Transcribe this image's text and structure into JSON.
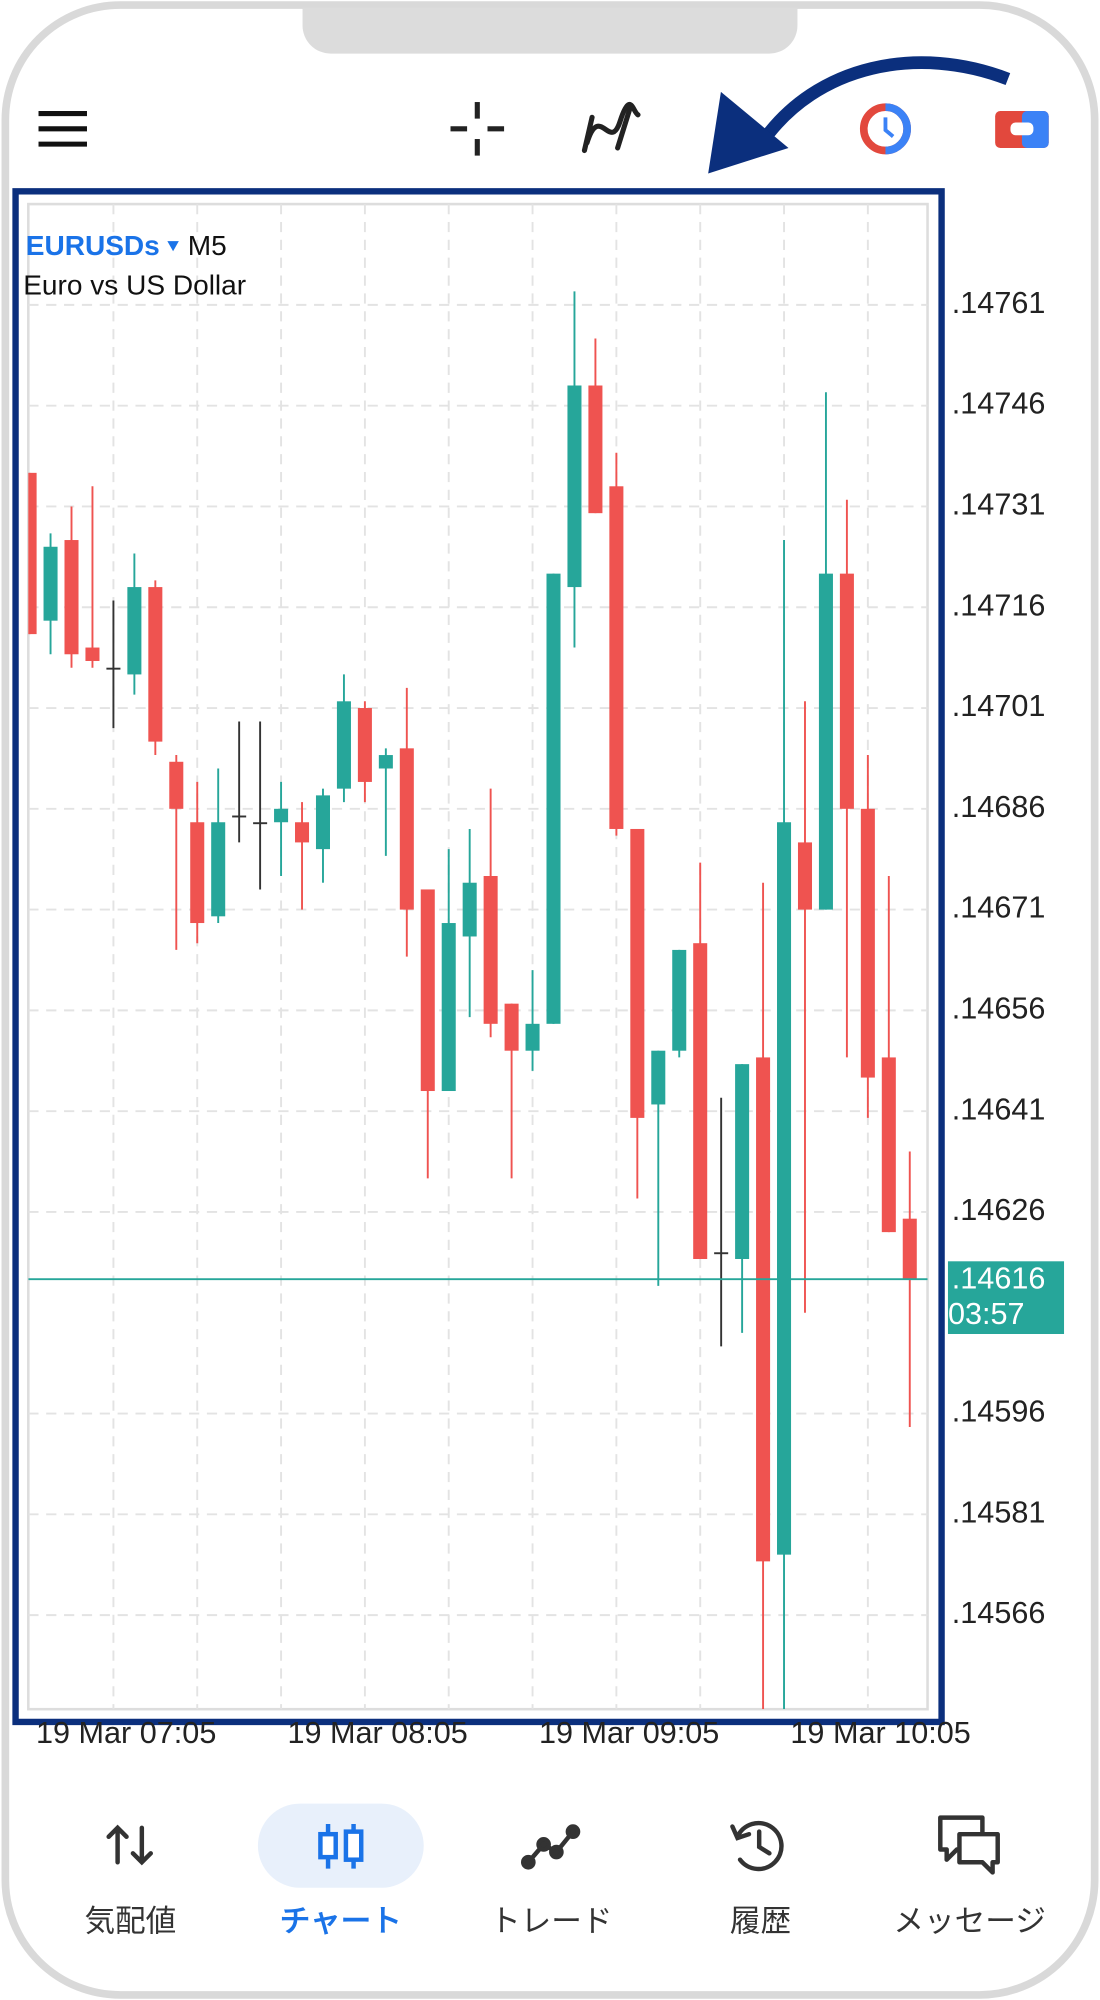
{
  "chart_data": {
    "type": "candlestick",
    "symbol": "EURUSDs",
    "timeframe": "M5",
    "description": "Euro vs US Dollar",
    "categories": [
      null,
      null,
      null,
      null,
      "19 Mar 07:05",
      null,
      null,
      null,
      null,
      null,
      null,
      null,
      null,
      null,
      null,
      null,
      "19 Mar 08:05",
      null,
      null,
      null,
      null,
      null,
      null,
      null,
      null,
      null,
      null,
      null,
      "19 Mar 09:05",
      null,
      null,
      null,
      null,
      null,
      null,
      null,
      null,
      null,
      null,
      null,
      "19 Mar 10:05",
      null,
      null
    ],
    "open": [
      1.14736,
      1.14714,
      1.14726,
      1.1471,
      1.14707,
      1.14706,
      1.14719,
      1.14693,
      1.14684,
      1.1467,
      1.14685,
      1.14684,
      1.14684,
      1.14684,
      1.1468,
      1.14689,
      1.14701,
      1.14692,
      1.14695,
      1.14674,
      1.14644,
      1.14667,
      1.14676,
      1.14657,
      1.1465,
      1.14654,
      1.14719,
      1.14749,
      1.14734,
      1.14683,
      1.14642,
      1.1465,
      1.14666,
      1.1462,
      1.14619,
      1.14649,
      1.14575,
      1.14681,
      1.14671,
      1.14721,
      1.14686,
      1.14649,
      1.14625
    ],
    "high": [
      1.14736,
      1.14727,
      1.14731,
      1.14734,
      1.14717,
      1.14724,
      1.1472,
      1.14694,
      1.1469,
      1.14692,
      1.14699,
      1.14699,
      1.1469,
      1.14687,
      1.14689,
      1.14706,
      1.14702,
      1.14695,
      1.14704,
      1.14674,
      1.1468,
      1.14683,
      1.14689,
      1.14657,
      1.14662,
      1.14721,
      1.14763,
      1.14756,
      1.14739,
      1.14683,
      1.1465,
      1.14665,
      1.14678,
      1.14643,
      1.14648,
      1.14675,
      1.14726,
      1.14702,
      1.14748,
      1.14732,
      1.14694,
      1.14676,
      1.14635
    ],
    "low": [
      1.14712,
      1.14709,
      1.14707,
      1.14707,
      1.14698,
      1.14703,
      1.14694,
      1.14665,
      1.14666,
      1.14669,
      1.14681,
      1.14674,
      1.14676,
      1.14671,
      1.14675,
      1.14687,
      1.14687,
      1.14679,
      1.14664,
      1.14631,
      1.14644,
      1.14655,
      1.14652,
      1.14631,
      1.14647,
      1.14654,
      1.1471,
      1.1473,
      1.14682,
      1.14628,
      1.14615,
      1.14649,
      1.14619,
      1.14606,
      1.14608,
      1.14552,
      1.14552,
      1.14611,
      1.14671,
      1.14649,
      1.1464,
      1.14623,
      1.14594
    ],
    "close": [
      1.14712,
      1.14725,
      1.14709,
      1.14708,
      1.14707,
      1.14719,
      1.14696,
      1.14686,
      1.14669,
      1.14684,
      1.14685,
      1.14684,
      1.14686,
      1.14681,
      1.14688,
      1.14702,
      1.1469,
      1.14694,
      1.14671,
      1.14644,
      1.14669,
      1.14675,
      1.14654,
      1.1465,
      1.14654,
      1.14721,
      1.14749,
      1.1473,
      1.14683,
      1.1464,
      1.1465,
      1.14665,
      1.14619,
      1.1462,
      1.14648,
      1.14574,
      1.14684,
      1.14671,
      1.14721,
      1.14686,
      1.14646,
      1.14623,
      1.14616
    ],
    "up_color": "#26a69a",
    "down_color": "#ef5350",
    "ylim": [
      1.14552,
      1.14776
    ],
    "yticks": [
      {
        "value": 1.14761,
        "label": ".14761"
      },
      {
        "value": 1.14746,
        "label": ".14746"
      },
      {
        "value": 1.14731,
        "label": ".14731"
      },
      {
        "value": 1.14716,
        "label": ".14716"
      },
      {
        "value": 1.14701,
        "label": ".14701"
      },
      {
        "value": 1.14686,
        "label": ".14686"
      },
      {
        "value": 1.14671,
        "label": ".14671"
      },
      {
        "value": 1.14656,
        "label": ".14656"
      },
      {
        "value": 1.14641,
        "label": ".14641"
      },
      {
        "value": 1.14626,
        "label": ".14626"
      },
      {
        "value": 1.14596,
        "label": ".14596"
      },
      {
        "value": 1.14581,
        "label": ".14581"
      },
      {
        "value": 1.14566,
        "label": ".14566"
      }
    ],
    "grid": true,
    "current_price": {
      "value": 1.14616,
      "label": ".14616"
    },
    "countdown": "03:57"
  },
  "nav": {
    "items": [
      "気配値",
      "チャート",
      "トレード",
      "履歴",
      "メッセージ"
    ],
    "active": 1
  }
}
